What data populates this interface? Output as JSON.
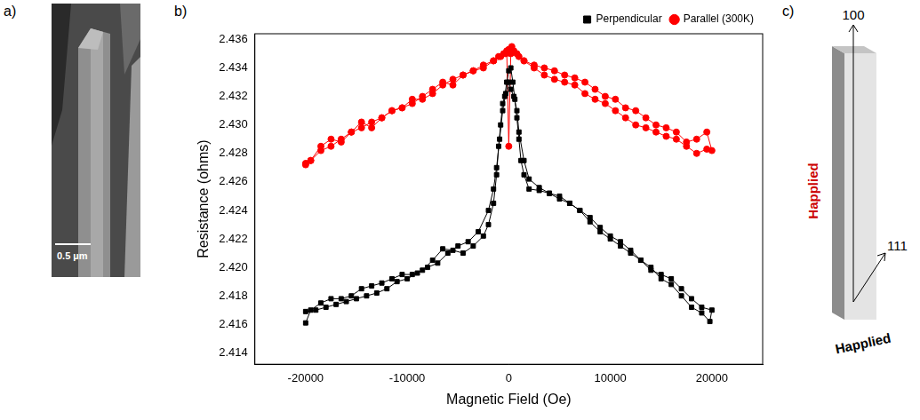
{
  "image": {
    "panel_label": "a)",
    "scale_bar": "0.5 µm"
  },
  "chart_data": {
    "panel_label": "b)",
    "type": "scatter",
    "x_label": "Magnetic Field (Oe)",
    "y_label": "Resistance (ohms)",
    "xlim": [
      -25000,
      25000
    ],
    "xticks": [
      -20000,
      -10000,
      0,
      10000,
      20000
    ],
    "ylim": [
      2.4132,
      2.4364
    ],
    "yticks": [
      {
        "value": 2.414,
        "label": "2.414"
      },
      {
        "value": 2.416,
        "label": "2.416"
      },
      {
        "value": 2.418,
        "label": "2.418"
      },
      {
        "value": 2.42,
        "label": "2.420"
      },
      {
        "value": 2.422,
        "label": "2.422"
      },
      {
        "value": 2.424,
        "label": "2.424"
      },
      {
        "value": 2.426,
        "label": "2.426"
      },
      {
        "value": 2.428,
        "label": "2.428"
      },
      {
        "value": 2.43,
        "label": "2.430"
      },
      {
        "value": 2.432,
        "label": "2.432"
      },
      {
        "value": 2.434,
        "label": "2.434"
      },
      {
        "value": 2.436,
        "label": "2.436"
      }
    ],
    "grid": false,
    "legend": "top right",
    "series": [
      {
        "name": "Perpendicular",
        "color": "#000000",
        "marker": "square",
        "line_style": "solid",
        "x": [
          -20000,
          -19500,
          -18500,
          -17500,
          -16500,
          -15500,
          -14500,
          -13500,
          -12500,
          -11500,
          -10500,
          -9500,
          -8500,
          -7500,
          -6500,
          -5500,
          -4500,
          -3500,
          -2500,
          -2000,
          -1500,
          -1200,
          -1000,
          -800,
          -600,
          -400,
          -200,
          0,
          200,
          400,
          600,
          800,
          1000,
          1200,
          1500,
          2000,
          3000,
          4000,
          5000,
          6000,
          7000,
          8000,
          9000,
          10000,
          11000,
          12000,
          13000,
          14000,
          15000,
          16000,
          17000,
          18000,
          19000,
          20000,
          19800,
          19000,
          18000,
          17000,
          16000,
          15000,
          14000,
          13000,
          12000,
          11000,
          10000,
          9000,
          8000,
          7000,
          6000,
          5000,
          4000,
          3000,
          2000,
          1500,
          1000,
          800,
          500,
          200,
          0,
          -300,
          -600,
          -900,
          -1200,
          -1500,
          -2000,
          -3000,
          -4000,
          -5000,
          -6000,
          -7000,
          -8000,
          -9000,
          -10000,
          -11000,
          -12000,
          -13000,
          -14000,
          -15000,
          -16000,
          -17000,
          -18000,
          -19000,
          -20000
        ],
        "values": [
          2.4161,
          2.417,
          2.4175,
          2.4178,
          2.4178,
          2.418,
          2.4185,
          2.4187,
          2.4189,
          2.4192,
          2.4195,
          2.4195,
          2.4198,
          2.4205,
          2.4213,
          2.4212,
          2.421,
          2.4215,
          2.4222,
          2.423,
          2.4245,
          2.4265,
          2.4285,
          2.43,
          2.4315,
          2.432,
          2.433,
          2.4338,
          2.434,
          2.433,
          2.4318,
          2.4305,
          2.429,
          2.4275,
          2.4265,
          2.4255,
          2.4254,
          2.4252,
          2.425,
          2.4245,
          2.424,
          2.4232,
          2.4225,
          2.422,
          2.4215,
          2.421,
          2.4205,
          2.4198,
          2.4195,
          2.4192,
          2.4185,
          2.4178,
          2.4172,
          2.417,
          2.4162,
          2.4168,
          2.4172,
          2.418,
          2.4188,
          2.4192,
          2.42,
          2.4205,
          2.4212,
          2.4218,
          2.4222,
          2.4228,
          2.4235,
          2.424,
          2.4245,
          2.4248,
          2.4252,
          2.4256,
          2.4262,
          2.4275,
          2.4295,
          2.431,
          2.432,
          2.4325,
          2.433,
          2.4322,
          2.431,
          2.429,
          2.427,
          2.4255,
          2.424,
          2.4225,
          2.4218,
          2.4215,
          2.421,
          2.4203,
          2.42,
          2.4196,
          2.4192,
          2.419,
          2.4185,
          2.4182,
          2.418,
          2.4178,
          2.4176,
          2.4174,
          2.4172,
          2.417,
          2.4169
        ]
      },
      {
        "name": "Parallel (300K)",
        "color": "#ff0000",
        "marker": "circle",
        "line_style": "solid",
        "x": [
          -20000,
          -19500,
          -18500,
          -17500,
          -16500,
          -15500,
          -14500,
          -13500,
          -12500,
          -11500,
          -10500,
          -9500,
          -8500,
          -7500,
          -6500,
          -5500,
          -4500,
          -3500,
          -2500,
          -1500,
          -1000,
          -500,
          -200,
          0,
          200,
          500,
          1000,
          1500,
          2500,
          3500,
          4500,
          5500,
          6500,
          7500,
          8500,
          9500,
          10500,
          11500,
          12500,
          13500,
          14500,
          15500,
          16500,
          17500,
          18500,
          19500,
          20000,
          19500,
          18500,
          17500,
          16500,
          15500,
          14500,
          13500,
          12500,
          11500,
          10500,
          9500,
          8500,
          7500,
          6500,
          5500,
          4500,
          3500,
          2500,
          1500,
          800,
          300,
          0,
          -300,
          -800,
          -1500,
          -2500,
          -3500,
          -4500,
          -5500,
          -6500,
          -7500,
          -8500,
          -9500,
          -10500,
          -11500,
          -12500,
          -13500,
          -14500,
          -15500,
          -16500,
          -17500,
          -18500,
          -19500,
          -20000
        ],
        "values": [
          2.4272,
          2.4275,
          2.4285,
          2.429,
          2.4288,
          2.4295,
          2.4302,
          2.4298,
          2.4305,
          2.431,
          2.4312,
          2.4315,
          2.432,
          2.4325,
          2.433,
          2.4328,
          2.4335,
          2.4338,
          2.434,
          2.4345,
          2.4348,
          2.435,
          2.4352,
          2.4285,
          2.435,
          2.4352,
          2.4348,
          2.4345,
          2.434,
          2.4335,
          2.4332,
          2.433,
          2.4328,
          2.4322,
          2.4318,
          2.4315,
          2.431,
          2.4305,
          2.43,
          2.4298,
          2.4295,
          2.4292,
          2.429,
          2.4285,
          2.428,
          2.4283,
          2.4282,
          2.4295,
          2.429,
          2.4288,
          2.4295,
          2.4298,
          2.43,
          2.4305,
          2.431,
          2.4312,
          2.4318,
          2.432,
          2.4325,
          2.433,
          2.4333,
          2.4335,
          2.4338,
          2.434,
          2.4342,
          2.4345,
          2.435,
          2.4355,
          2.4353,
          2.435,
          2.4348,
          2.4345,
          2.4342,
          2.4338,
          2.4335,
          2.4332,
          2.4328,
          2.4322,
          2.4318,
          2.4318,
          2.4312,
          2.431,
          2.4305,
          2.4302,
          2.4298,
          2.4295,
          2.429,
          2.4285,
          2.4282,
          2.4275,
          2.4273
        ]
      }
    ]
  },
  "diagram": {
    "panel_label": "c)",
    "directions": [
      "100",
      "111"
    ],
    "fields": [
      {
        "text": "Happlied",
        "color": "#cc0000"
      },
      {
        "text": "Happlied",
        "color": "#000000"
      }
    ]
  }
}
